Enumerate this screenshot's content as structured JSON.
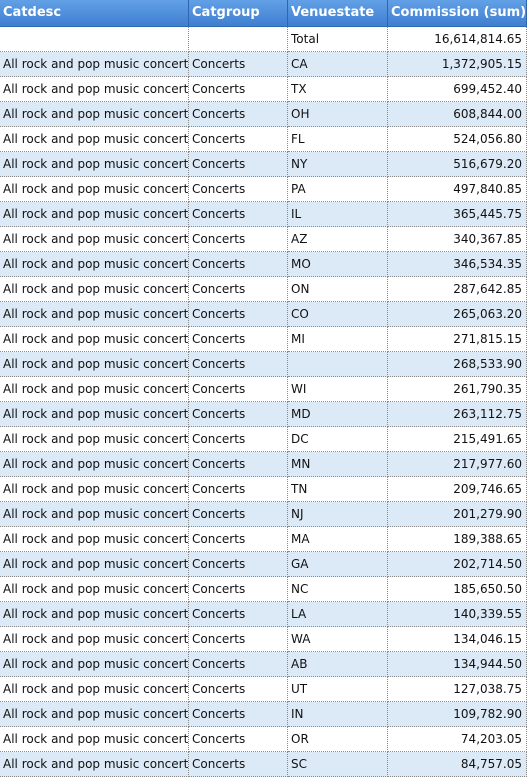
{
  "table": {
    "headers": [
      "Catdesc",
      "Catgroup",
      "Venuestate",
      "Commission (sum)"
    ],
    "total_row": {
      "catdesc": "",
      "catgroup": "",
      "venuestate": "Total",
      "commission": "16,614,814.65"
    },
    "rows": [
      {
        "catdesc": "All rock and pop music concerts",
        "catgroup": "Concerts",
        "venuestate": "CA",
        "commission": "1,372,905.15"
      },
      {
        "catdesc": "All rock and pop music concerts",
        "catgroup": "Concerts",
        "venuestate": "TX",
        "commission": "699,452.40"
      },
      {
        "catdesc": "All rock and pop music concerts",
        "catgroup": "Concerts",
        "venuestate": "OH",
        "commission": "608,844.00"
      },
      {
        "catdesc": "All rock and pop music concerts",
        "catgroup": "Concerts",
        "venuestate": "FL",
        "commission": "524,056.80"
      },
      {
        "catdesc": "All rock and pop music concerts",
        "catgroup": "Concerts",
        "venuestate": "NY",
        "commission": "516,679.20"
      },
      {
        "catdesc": "All rock and pop music concerts",
        "catgroup": "Concerts",
        "venuestate": "PA",
        "commission": "497,840.85"
      },
      {
        "catdesc": "All rock and pop music concerts",
        "catgroup": "Concerts",
        "venuestate": "IL",
        "commission": "365,445.75"
      },
      {
        "catdesc": "All rock and pop music concerts",
        "catgroup": "Concerts",
        "venuestate": "AZ",
        "commission": "340,367.85"
      },
      {
        "catdesc": "All rock and pop music concerts",
        "catgroup": "Concerts",
        "venuestate": "MO",
        "commission": "346,534.35"
      },
      {
        "catdesc": "All rock and pop music concerts",
        "catgroup": "Concerts",
        "venuestate": "ON",
        "commission": "287,642.85"
      },
      {
        "catdesc": "All rock and pop music concerts",
        "catgroup": "Concerts",
        "venuestate": "CO",
        "commission": "265,063.20"
      },
      {
        "catdesc": "All rock and pop music concerts",
        "catgroup": "Concerts",
        "venuestate": "MI",
        "commission": "271,815.15"
      },
      {
        "catdesc": "All rock and pop music concerts",
        "catgroup": "Concerts",
        "venuestate": "",
        "commission": "268,533.90"
      },
      {
        "catdesc": "All rock and pop music concerts",
        "catgroup": "Concerts",
        "venuestate": "WI",
        "commission": "261,790.35"
      },
      {
        "catdesc": "All rock and pop music concerts",
        "catgroup": "Concerts",
        "venuestate": "MD",
        "commission": "263,112.75"
      },
      {
        "catdesc": "All rock and pop music concerts",
        "catgroup": "Concerts",
        "venuestate": "DC",
        "commission": "215,491.65"
      },
      {
        "catdesc": "All rock and pop music concerts",
        "catgroup": "Concerts",
        "venuestate": "MN",
        "commission": "217,977.60"
      },
      {
        "catdesc": "All rock and pop music concerts",
        "catgroup": "Concerts",
        "venuestate": "TN",
        "commission": "209,746.65"
      },
      {
        "catdesc": "All rock and pop music concerts",
        "catgroup": "Concerts",
        "venuestate": "NJ",
        "commission": "201,279.90"
      },
      {
        "catdesc": "All rock and pop music concerts",
        "catgroup": "Concerts",
        "venuestate": "MA",
        "commission": "189,388.65"
      },
      {
        "catdesc": "All rock and pop music concerts",
        "catgroup": "Concerts",
        "venuestate": "GA",
        "commission": "202,714.50"
      },
      {
        "catdesc": "All rock and pop music concerts",
        "catgroup": "Concerts",
        "venuestate": "NC",
        "commission": "185,650.50"
      },
      {
        "catdesc": "All rock and pop music concerts",
        "catgroup": "Concerts",
        "venuestate": "LA",
        "commission": "140,339.55"
      },
      {
        "catdesc": "All rock and pop music concerts",
        "catgroup": "Concerts",
        "venuestate": "WA",
        "commission": "134,046.15"
      },
      {
        "catdesc": "All rock and pop music concerts",
        "catgroup": "Concerts",
        "venuestate": "AB",
        "commission": "134,944.50"
      },
      {
        "catdesc": "All rock and pop music concerts",
        "catgroup": "Concerts",
        "venuestate": "UT",
        "commission": "127,038.75"
      },
      {
        "catdesc": "All rock and pop music concerts",
        "catgroup": "Concerts",
        "venuestate": "IN",
        "commission": "109,782.90"
      },
      {
        "catdesc": "All rock and pop music concerts",
        "catgroup": "Concerts",
        "venuestate": "OR",
        "commission": "74,203.05"
      },
      {
        "catdesc": "All rock and pop music concerts",
        "catgroup": "Concerts",
        "venuestate": "SC",
        "commission": "84,757.05"
      }
    ]
  }
}
